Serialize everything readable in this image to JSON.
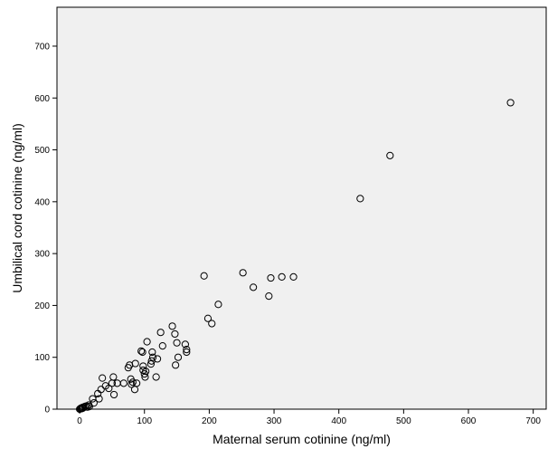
{
  "chart_data": {
    "type": "scatter",
    "title": "",
    "xlabel": "Maternal serum cotinine (ng/ml)",
    "ylabel": "Umbilical cord cotinine (ng/ml)",
    "xlim": [
      -35,
      720
    ],
    "ylim": [
      0,
      775
    ],
    "xticks": [
      0,
      100,
      200,
      300,
      400,
      500,
      600,
      700
    ],
    "yticks": [
      0,
      100,
      200,
      300,
      400,
      500,
      600,
      700
    ],
    "grid": false,
    "colors": {
      "plot_background": "#f0f0f0",
      "marker_stroke": "#000000",
      "marker_fill": "none"
    },
    "series": [
      {
        "points": [
          [
            0,
            0
          ],
          [
            1,
            1
          ],
          [
            2,
            2
          ],
          [
            3,
            1
          ],
          [
            4,
            3
          ],
          [
            5,
            2
          ],
          [
            6,
            4
          ],
          [
            8,
            5
          ],
          [
            10,
            6
          ],
          [
            12,
            4
          ],
          [
            14,
            8
          ],
          [
            15,
            5
          ],
          [
            20,
            20
          ],
          [
            22,
            12
          ],
          [
            28,
            30
          ],
          [
            30,
            20
          ],
          [
            33,
            38
          ],
          [
            35,
            60
          ],
          [
            40,
            45
          ],
          [
            45,
            40
          ],
          [
            50,
            50
          ],
          [
            52,
            62
          ],
          [
            53,
            28
          ],
          [
            58,
            50
          ],
          [
            68,
            50
          ],
          [
            75,
            80
          ],
          [
            77,
            85
          ],
          [
            79,
            58
          ],
          [
            80,
            48
          ],
          [
            82,
            52
          ],
          [
            85,
            38
          ],
          [
            86,
            88
          ],
          [
            88,
            50
          ],
          [
            95,
            112
          ],
          [
            97,
            110
          ],
          [
            98,
            75
          ],
          [
            98,
            83
          ],
          [
            100,
            68
          ],
          [
            101,
            62
          ],
          [
            102,
            73
          ],
          [
            104,
            130
          ],
          [
            110,
            87
          ],
          [
            111,
            93
          ],
          [
            112,
            110
          ],
          [
            113,
            100
          ],
          [
            118,
            62
          ],
          [
            120,
            97
          ],
          [
            125,
            148
          ],
          [
            128,
            122
          ],
          [
            143,
            160
          ],
          [
            147,
            145
          ],
          [
            148,
            85
          ],
          [
            150,
            128
          ],
          [
            152,
            100
          ],
          [
            163,
            125
          ],
          [
            165,
            115
          ],
          [
            165,
            110
          ],
          [
            192,
            257
          ],
          [
            198,
            175
          ],
          [
            204,
            165
          ],
          [
            214,
            202
          ],
          [
            252,
            263
          ],
          [
            268,
            235
          ],
          [
            292,
            218
          ],
          [
            295,
            253
          ],
          [
            312,
            255
          ],
          [
            330,
            255
          ],
          [
            433,
            406
          ],
          [
            479,
            489
          ],
          [
            665,
            591
          ]
        ]
      }
    ]
  }
}
